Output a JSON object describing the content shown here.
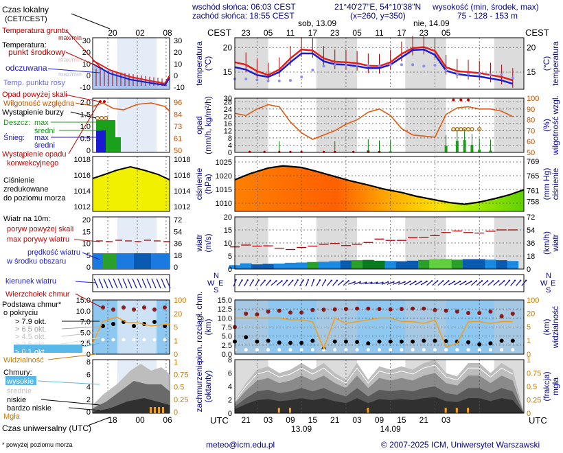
{
  "header": {
    "sunrise": "wschód słońca: 06:03 CEST",
    "sunset": "zachód słońca: 18:55 CEST",
    "coords": "21°40'27\"E, 54°10'38\"N",
    "grid": "(x=260, y=350)",
    "elev_title": "wysokość (min, środek, max)",
    "elev_values": "75 - 128 - 153 m"
  },
  "legend": {
    "time_local": [
      "Czas lokalny",
      "(CET/CEST)"
    ],
    "ground_temp": "Temperatura gruntu",
    "ground_temp_sub": "max/min",
    "temp_title": "Temperatura:",
    "temp_mid": "punkt środkowy",
    "temp_maxmin": "max/min",
    "temp_felt": "odczuwana",
    "temp_felt_maxmin": "max/min",
    "dewpoint": "Temp. punktu rosy",
    "precip_above": "Opad powyżej skali",
    "humidity": "Wilgotność względna",
    "storm": "Wystąpienie burzy",
    "rain_title": "Deszcz:",
    "rain_max": "max",
    "rain_mid": "średni",
    "snow_title": "Śnieg:",
    "snow_max": "max",
    "snow_mid": "średni",
    "conv1": "Wystąpienie opadu",
    "conv2": "konwekcyjnego",
    "pressure": [
      "Ciśnienie",
      "zredukowane",
      "do poziomu morza"
    ],
    "wind_title": "Wiatr na 10m:",
    "gust_above": "poryw powyżej skali",
    "gust_max": "max porywy wiatru",
    "wind_speed": [
      "prędkość wiatru",
      "w środku obszaru"
    ],
    "wind_dir": "kierunek wiatru",
    "cloud_top": "Wierzchołek chmur",
    "cloud_base": [
      "Podstawa chmur*",
      "o pokryciu"
    ],
    "okt": [
      "> 7.9 okt.",
      "> 6.5 okt.",
      "> 4.5 okt.",
      "> 2.5 okt.",
      "> 0.1 okt."
    ],
    "visibility": "Widzialność",
    "clouds_title": "Chmury:",
    "clouds_high": "wysokie",
    "clouds_mid": "średnie",
    "clouds_low": "niskie",
    "clouds_vlow": "bardzo niskie",
    "fog": "Mgła",
    "utc": "Czas uniwersalny (UTC)",
    "small_ticks_top": [
      "20",
      "02",
      "08"
    ],
    "small_ticks_bottom": [
      "18",
      "00",
      "06"
    ],
    "small_temp_ticks": [
      "30",
      "20",
      "10",
      "0",
      "-10"
    ],
    "small_prec_ticks": [
      "2.0",
      "1.5",
      "1.0",
      "0.5",
      "0"
    ],
    "small_hum_ticks": [
      "96",
      "84",
      "73",
      "61",
      "50"
    ],
    "small_pres_ticks": [
      "1018",
      "1016",
      "1014",
      "1012"
    ],
    "small_wind_ticks": [
      "20",
      "15",
      "10",
      "5",
      "0"
    ],
    "small_windk_ticks": [
      "72",
      "54",
      "36",
      "18",
      "0"
    ],
    "small_cb_ticks": [
      "15.0",
      "10.0",
      "7.0",
      "5.0",
      "2.5",
      "0"
    ],
    "small_vis_ticks": [
      "100",
      "20",
      "5",
      "1",
      "0"
    ],
    "small_cl_ticks": [
      "8",
      "6",
      "4",
      "2",
      "0"
    ],
    "small_fog_ticks": [
      "1",
      "0.75",
      "0.5",
      "0.25",
      "0"
    ]
  },
  "main": {
    "tz_local": "CEST",
    "tz_utc": "UTC",
    "day1": "sob, 13.09",
    "day2": "nie, 14.09",
    "local_hours": [
      "23",
      "05",
      "11",
      "17",
      "23",
      "05",
      "11",
      "17",
      "23",
      "05"
    ],
    "utc_hours": [
      "21",
      "03",
      "09",
      "15",
      "21",
      "03",
      "09",
      "15",
      "21",
      "03"
    ],
    "utc_date1": "13.09",
    "utc_date2": "14.09",
    "labels": {
      "temp_left": [
        "temperatura",
        "(°C)"
      ],
      "temp_right": [
        "(°C)",
        "temperatura"
      ],
      "prec_left": [
        "opad",
        "(mm/h, kg/m²/h)"
      ],
      "prec_right": [
        "(%)",
        "wilgotność wzgl."
      ],
      "pres_left": [
        "ciśnienie",
        "(hPa)"
      ],
      "pres_right": [
        "(mm Hg)",
        "ciśnienie"
      ],
      "wind_left": [
        "wiatr",
        "(m/s)"
      ],
      "wind_right": [
        "(km/h)",
        "wiatr"
      ],
      "cb_left": [
        "pion. rozciągł. chm.",
        "(km)"
      ],
      "cb_right": [
        "(km)",
        "widzialność"
      ],
      "cl_left": [
        "zachmurzenie",
        "(oktanty)"
      ],
      "cl_right": [
        "(frakcja)",
        "mgła"
      ],
      "compass": [
        "N",
        "W",
        "E",
        "S"
      ]
    },
    "ticks": {
      "temp_left": [
        "20",
        "15"
      ],
      "temp_right": [
        "20",
        "15"
      ],
      "prec_left": [
        "30",
        "28",
        "24",
        "20",
        "16",
        "12",
        "8",
        "4",
        "0"
      ],
      "prec_right": [
        "100",
        "90",
        "80",
        "70",
        "60",
        "50"
      ],
      "pres_left": [
        "1025",
        "1020",
        "1015",
        "1010"
      ],
      "pres_right": [
        "769",
        "765",
        "761",
        "758"
      ],
      "wind_left": [
        "20",
        "15",
        "10",
        "5",
        "0"
      ],
      "wind_right": [
        "72",
        "54",
        "36",
        "18",
        "0"
      ],
      "cb_left": [
        "15.0",
        "12.5",
        "10.0",
        "7.5",
        "5.0",
        "2.5",
        "0.0"
      ],
      "cb_right": [
        "100",
        "20",
        "5",
        "1",
        "0"
      ],
      "cl_left": [
        "8",
        "6",
        "4",
        "2",
        "0"
      ],
      "cl_right": [
        "1",
        "0.75",
        "0.5",
        "0.25",
        "0"
      ]
    }
  },
  "footer": {
    "note": "* powyżej poziomu morza",
    "email": "meteo@icm.edu.pl",
    "copyright": "© 2007-2025 ICM, Uniwersytet Warszawski"
  },
  "colors": {
    "temp": "#e0201a",
    "felt": "#1a1ad0",
    "dew": "#8a8aff",
    "humidity": "#e05a10",
    "rain": "#1aa01a",
    "pressure_line": "#000000",
    "wind_fill": "#1a7ae0",
    "night": "#d8d8d8",
    "cloud_bg": "#8ec8f0",
    "visibility": "#f0a020"
  },
  "chart_data": {
    "type": "line",
    "hours_utc": [
      18,
      21,
      24,
      27,
      30,
      33,
      36,
      39,
      42,
      45,
      48,
      51,
      54,
      57,
      60,
      63,
      66,
      69,
      72,
      75,
      78,
      81,
      84,
      87,
      90,
      93
    ],
    "time_ticks_utc": [
      "21",
      "03",
      "09",
      "15",
      "21",
      "03",
      "09",
      "15",
      "21",
      "03"
    ],
    "temperature": [
      17,
      16.5,
      15.2,
      14.4,
      15.5,
      17.8,
      19.6,
      19.4,
      17.8,
      17.1,
      17.0,
      16.8,
      16.3,
      16.2,
      17.0,
      18.7,
      19.9,
      20.1,
      19.3,
      16.0,
      15.2,
      15.0,
      14.8,
      14.4,
      14.0,
      13.3
    ],
    "felt_temperature": [
      16,
      15.5,
      14.4,
      14.0,
      15.0,
      17.0,
      18.8,
      18.8,
      17.2,
      16.6,
      16.5,
      16.2,
      15.8,
      15.8,
      16.5,
      18.0,
      19.5,
      19.6,
      18.5,
      15.3,
      14.6,
      14.3,
      14.1,
      13.7,
      13.3,
      12.6
    ],
    "dew_point": [
      13.6,
      13.6,
      13.4,
      13.2,
      13.2,
      13.3,
      14.0,
      15.4,
      16.2,
      16.5,
      16.4,
      16.4,
      16.3,
      16.3,
      16.5,
      16.5,
      16.5,
      16.2,
      16.4,
      15.4,
      14.5,
      14.6,
      14.7,
      14.5,
      14.5,
      13.8
    ],
    "humidity": [
      86,
      84,
      90,
      94,
      92,
      78,
      68,
      62,
      66,
      70,
      76,
      80,
      87,
      90,
      84,
      72,
      66,
      65,
      64,
      85,
      91,
      92,
      90,
      90,
      88,
      83
    ],
    "precipitation_bars": [
      [
        30,
        0.2
      ],
      [
        45,
        0.2
      ],
      [
        54,
        1.2
      ],
      [
        57,
        0.6
      ],
      [
        60,
        0.6
      ],
      [
        75,
        3.6
      ],
      [
        78,
        6.5
      ],
      [
        80,
        6.8
      ],
      [
        82,
        4.2
      ],
      [
        84,
        1.6
      ],
      [
        87,
        1.0
      ]
    ],
    "storm_hours": [
      77,
      79,
      81
    ],
    "pressure": [
      1018.5,
      1020.7,
      1022.8,
      1023.6,
      1023.0,
      1021.6,
      1019.7,
      1018.2,
      1016.6,
      1015.2,
      1013.9,
      1012.5,
      1011.2,
      1010.2,
      1009.6,
      1010.4,
      1011.6,
      1013.0,
      1014.9
    ],
    "pressure_hours": [
      18,
      22,
      27,
      31,
      36,
      40,
      45,
      49,
      54,
      58,
      63,
      67,
      72,
      76,
      80,
      84,
      88,
      92,
      96
    ],
    "wind_speed": [
      1.5,
      2.2,
      1.8,
      2.0,
      2.1,
      2.4,
      2.5,
      2.7,
      2.8,
      3.0,
      3.3,
      3.4,
      3.5,
      3.2,
      3.1,
      3.0,
      3.2,
      3.5,
      3.8,
      3.9,
      3.6,
      3.8,
      3.8,
      3.6,
      3.4,
      3.1
    ],
    "wind_gust": [
      8.5,
      9.2,
      8.8,
      8.9,
      8.0,
      7.5,
      8.3,
      8.8,
      9.5,
      9.8,
      9.0,
      9.5,
      10.2,
      11.5,
      11.0,
      11.0,
      12.0,
      12.2,
      12.8,
      14.0,
      14.6,
      14.0,
      13.8,
      14.5,
      15.0,
      15.0
    ],
    "wind_dir_deg": [
      200,
      210,
      210,
      220,
      230,
      220,
      210,
      200,
      210,
      220,
      230,
      250,
      260,
      260,
      250,
      250,
      240,
      240,
      230,
      230,
      240,
      240,
      230,
      230,
      230,
      220
    ],
    "cloud_top_km": [
      7.5,
      11.2,
      11.0,
      11.8,
      12.0,
      11.5,
      11.5,
      12.2,
      12.3,
      12.4,
      12.5,
      12.6,
      12.6,
      12.5,
      12.4,
      12.5,
      12.6,
      12.6,
      12.2,
      12.0,
      11.8,
      11.4,
      11.4,
      11.8,
      10.5,
      11.2
    ],
    "cloud_base_km": [
      7.0,
      8.2,
      7.0,
      7.2,
      6.7,
      6.6,
      6.6,
      7.2,
      5.0,
      7.0,
      7.0,
      6.9,
      6.5,
      7.0,
      7.0,
      7.0,
      7.0,
      7.2,
      7.2,
      7.1,
      7.0,
      6.8,
      6.2,
      6.5,
      7.2,
      7.2
    ],
    "visibility_km": [
      20,
      20,
      20,
      20,
      20,
      19,
      19,
      18,
      3,
      20,
      17,
      18,
      19,
      20,
      20,
      18,
      18,
      17,
      19,
      4,
      6,
      18,
      18,
      17,
      18,
      18
    ],
    "cloud_cover_okt": [
      2.0,
      4.5,
      6.5,
      7.0,
      6.0,
      6.5,
      7.5,
      6.5,
      7.5,
      6.0,
      5.0,
      7.5,
      5.0,
      7.0,
      6.5,
      7.0,
      6.5,
      7.5,
      8.0,
      6.0,
      5.5,
      7.5,
      7.5,
      6.0,
      7.5,
      6.5
    ],
    "fog_hours": [
      30,
      33,
      54,
      75,
      78,
      81
    ]
  }
}
